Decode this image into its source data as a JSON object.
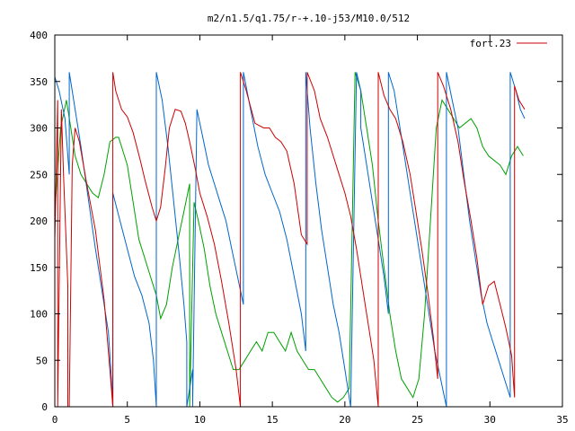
{
  "chart_data": {
    "type": "line",
    "title": "m2/n1.5/q1.75/r-+.10-j53/M10.0/512",
    "xlabel": "",
    "ylabel": "",
    "xlim": [
      0,
      35
    ],
    "ylim": [
      0,
      400
    ],
    "x_ticks": [
      0,
      5,
      10,
      15,
      20,
      25,
      30,
      35
    ],
    "y_ticks": [
      0,
      50,
      100,
      150,
      200,
      250,
      300,
      350,
      400
    ],
    "grid": false,
    "legend_position": "top-right",
    "series": [
      {
        "name": "fort.23",
        "color": "#cc0000",
        "x": [
          0.0,
          0.2,
          0.2,
          0.45,
          0.6,
          0.9,
          0.9,
          1.0,
          1.2,
          1.4,
          1.7,
          2.2,
          2.8,
          3.4,
          3.8,
          4.0,
          4.0,
          4.2,
          4.6,
          5.0,
          5.4,
          5.9,
          6.2,
          6.7,
          7.0,
          7.3,
          7.6,
          7.9,
          8.3,
          8.7,
          9.0,
          9.3,
          9.7,
          10.0,
          10.5,
          11.0,
          11.5,
          12.0,
          12.5,
          12.8,
          12.8,
          13.2,
          13.8,
          14.4,
          14.8,
          15.2,
          15.6,
          16.0,
          16.5,
          17.0,
          17.4,
          17.4,
          17.9,
          18.3,
          18.8,
          19.2,
          19.6,
          20.0,
          20.4,
          20.8,
          21.2,
          21.6,
          22.0,
          22.3,
          22.3,
          22.7,
          23.1,
          23.5,
          24.0,
          24.5,
          24.9,
          25.3,
          25.7,
          26.1,
          26.4,
          26.4,
          26.8,
          27.3,
          27.8,
          28.2,
          28.7,
          29.1,
          29.5,
          29.9,
          30.3,
          30.7,
          31.1,
          31.5,
          31.7,
          31.7,
          32.0,
          32.4
        ],
        "y": [
          180,
          330,
          0,
          320,
          250,
          130,
          0,
          0,
          260,
          300,
          285,
          240,
          190,
          115,
          40,
          0,
          360,
          340,
          320,
          312,
          295,
          265,
          245,
          215,
          200,
          215,
          255,
          300,
          320,
          318,
          305,
          285,
          255,
          230,
          205,
          175,
          135,
          90,
          40,
          0,
          360,
          340,
          305,
          300,
          300,
          290,
          285,
          275,
          240,
          185,
          175,
          360,
          340,
          310,
          290,
          270,
          250,
          230,
          205,
          170,
          130,
          90,
          50,
          0,
          360,
          335,
          320,
          310,
          285,
          250,
          210,
          170,
          125,
          75,
          30,
          360,
          345,
          320,
          285,
          245,
          200,
          160,
          110,
          130,
          135,
          110,
          85,
          55,
          10,
          345,
          330,
          320
        ]
      },
      {
        "name": "",
        "color": "#0066cc",
        "x": [
          0.0,
          0.3,
          0.7,
          1.0,
          1.0,
          1.3,
          1.8,
          2.3,
          2.8,
          3.3,
          3.7,
          3.9,
          4.0,
          4.0,
          4.5,
          5.0,
          5.5,
          6.0,
          6.5,
          6.8,
          7.0,
          7.0,
          7.4,
          7.8,
          8.2,
          8.6,
          8.9,
          9.1,
          9.1,
          9.5,
          9.5,
          9.8,
          10.2,
          10.6,
          11.0,
          11.4,
          11.8,
          12.2,
          12.6,
          13.0,
          13.0,
          13.5,
          14.0,
          14.5,
          15.0,
          15.5,
          16.0,
          16.5,
          17.0,
          17.3,
          17.3,
          17.6,
          18.0,
          18.4,
          18.8,
          19.2,
          19.6,
          20.0,
          20.4,
          20.8,
          21.1,
          21.1,
          21.5,
          21.9,
          22.3,
          22.7,
          23.0,
          23.0,
          23.4,
          23.8,
          24.2,
          24.6,
          25.0,
          25.4,
          25.8,
          26.2,
          26.6,
          27.0,
          27.0,
          27.4,
          27.8,
          28.2,
          28.6,
          29.0,
          29.4,
          29.8,
          30.2,
          30.6,
          31.0,
          31.4,
          31.4,
          31.8,
          32.1,
          32.4
        ],
        "y": [
          355,
          340,
          310,
          250,
          360,
          330,
          280,
          225,
          170,
          120,
          80,
          30,
          0,
          230,
          200,
          170,
          140,
          120,
          90,
          50,
          0,
          360,
          330,
          280,
          220,
          160,
          110,
          70,
          0,
          40,
          0,
          320,
          290,
          260,
          240,
          220,
          200,
          170,
          140,
          110,
          360,
          320,
          280,
          250,
          230,
          210,
          180,
          140,
          100,
          60,
          360,
          300,
          240,
          190,
          150,
          110,
          80,
          40,
          0,
          360,
          340,
          300,
          260,
          220,
          180,
          140,
          100,
          360,
          340,
          300,
          260,
          220,
          180,
          140,
          100,
          60,
          30,
          0,
          360,
          330,
          300,
          250,
          200,
          160,
          120,
          90,
          70,
          50,
          30,
          10,
          360,
          340,
          320,
          310
        ]
      },
      {
        "name": "",
        "color": "#00a000",
        "x": [
          0.0,
          0.4,
          0.8,
          1.1,
          1.4,
          1.8,
          2.2,
          2.6,
          3.0,
          3.4,
          3.8,
          4.2,
          4.4,
          4.7,
          5.0,
          5.4,
          5.8,
          6.2,
          6.6,
          7.0,
          7.3,
          7.7,
          8.1,
          8.5,
          8.9,
          9.3,
          9.3,
          9.6,
          9.9,
          10.3,
          10.7,
          11.1,
          11.5,
          11.9,
          12.3,
          12.7,
          13.1,
          13.5,
          13.9,
          14.3,
          14.7,
          15.1,
          15.5,
          15.9,
          16.3,
          16.7,
          17.1,
          17.5,
          17.9,
          18.3,
          18.7,
          19.1,
          19.5,
          19.9,
          20.3,
          20.7,
          21.1,
          21.5,
          21.9,
          22.3,
          22.7,
          23.1,
          23.5,
          23.9,
          24.3,
          24.7,
          25.1,
          25.5,
          25.9,
          26.3,
          26.7,
          27.1,
          27.5,
          27.9,
          28.3,
          28.7,
          29.1,
          29.5,
          29.9,
          30.3,
          30.7,
          31.1,
          31.5,
          31.9,
          32.3
        ],
        "y": [
          210,
          300,
          330,
          300,
          270,
          250,
          240,
          230,
          225,
          250,
          285,
          290,
          290,
          275,
          260,
          220,
          180,
          160,
          140,
          120,
          95,
          110,
          150,
          180,
          210,
          240,
          0,
          220,
          200,
          170,
          130,
          100,
          80,
          60,
          40,
          40,
          50,
          60,
          70,
          60,
          80,
          80,
          70,
          60,
          80,
          60,
          50,
          40,
          40,
          30,
          20,
          10,
          5,
          10,
          20,
          360,
          340,
          300,
          260,
          200,
          150,
          100,
          60,
          30,
          20,
          10,
          30,
          100,
          200,
          300,
          330,
          320,
          310,
          300,
          305,
          310,
          300,
          280,
          270,
          265,
          260,
          250,
          270,
          280,
          270
        ]
      }
    ]
  }
}
